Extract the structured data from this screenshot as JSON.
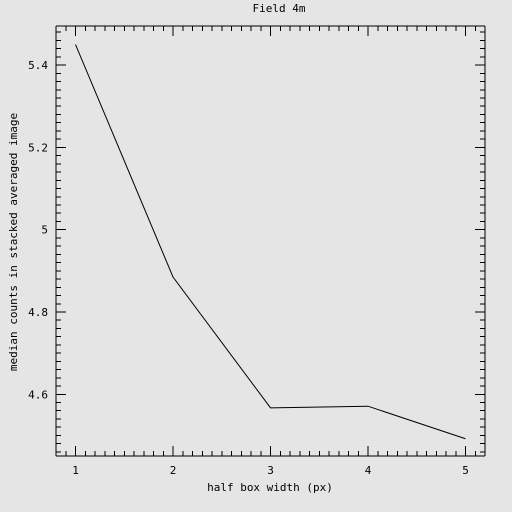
{
  "chart_data": {
    "type": "line",
    "title": "Field 4m",
    "xlabel": "half box width (px)",
    "ylabel": "median counts in stacked averaged image",
    "xlim": [
      0.8,
      5.2
    ],
    "ylim": [
      4.45,
      5.495
    ],
    "x_major_ticks": [
      1,
      2,
      3,
      4,
      5
    ],
    "x_minor_ticks": [
      0.8,
      0.9,
      1.1,
      1.2,
      1.3,
      1.4,
      1.5,
      1.6,
      1.7,
      1.8,
      1.9,
      2.1,
      2.2,
      2.3,
      2.4,
      2.5,
      2.6,
      2.7,
      2.8,
      2.9,
      3.1,
      3.2,
      3.3,
      3.4,
      3.5,
      3.6,
      3.7,
      3.8,
      3.9,
      4.1,
      4.2,
      4.3,
      4.4,
      4.5,
      4.6,
      4.7,
      4.8,
      4.9,
      5.1,
      5.2
    ],
    "x_tick_labels": [
      "1",
      "2",
      "3",
      "4",
      "5"
    ],
    "y_major_ticks": [
      4.6,
      4.8,
      5,
      5.2,
      5.4
    ],
    "y_minor_ticks": [
      4.46,
      4.48,
      4.5,
      4.52,
      4.54,
      4.56,
      4.58,
      4.62,
      4.64,
      4.66,
      4.68,
      4.7,
      4.72,
      4.74,
      4.76,
      4.78,
      4.82,
      4.84,
      4.86,
      4.88,
      4.9,
      4.92,
      4.94,
      4.96,
      4.98,
      5.02,
      5.04,
      5.06,
      5.08,
      5.1,
      5.12,
      5.14,
      5.16,
      5.18,
      5.22,
      5.24,
      5.26,
      5.28,
      5.3,
      5.32,
      5.34,
      5.36,
      5.38,
      5.42,
      5.44,
      5.46,
      5.48
    ],
    "y_tick_labels": [
      "4.6",
      "4.8",
      "5",
      "5.2",
      "5.4"
    ],
    "series": [
      {
        "x": [
          1,
          2,
          3,
          4,
          5
        ],
        "y": [
          5.45,
          4.885,
          4.567,
          4.571,
          4.492
        ]
      }
    ],
    "grid": false,
    "legend": "none",
    "colors": {
      "background": "#e5e5e5",
      "axes": "#000000",
      "line": "#000000"
    }
  }
}
